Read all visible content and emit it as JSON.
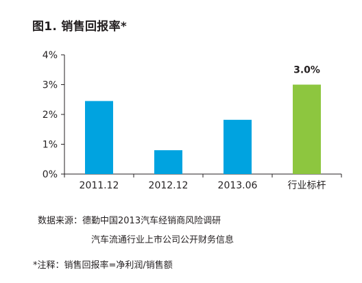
{
  "title": "图1. 销售回报率*",
  "chart_data": {
    "type": "bar",
    "categories": [
      "2011.12",
      "2012.12",
      "2013.06",
      "行业标杆"
    ],
    "values": [
      2.45,
      0.8,
      1.82,
      3.0
    ],
    "value_labels": [
      "",
      "",
      "",
      "3.0%"
    ],
    "colors": [
      "#00a3e0",
      "#00a3e0",
      "#00a3e0",
      "#8dc63f"
    ],
    "yticks": [
      "0%",
      "1%",
      "2%",
      "3%",
      "4%"
    ],
    "ylim": [
      0,
      4
    ],
    "grid": false,
    "legend": "none",
    "title": "图1. 销售回报率*",
    "xlabel": "",
    "ylabel": ""
  },
  "source": {
    "line1": "数据来源：德勤中国2013汽车经销商风险调研",
    "line2": "汽车流通行业上市公司公开财务信息"
  },
  "footnote": "*注释：销售回报率=净利润/销售额"
}
